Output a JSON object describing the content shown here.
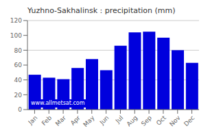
{
  "chart_data": {
    "type": "bar",
    "title": "Yuzhno-Sakhalinsk : precipitation (mm)",
    "categories": [
      "Jan",
      "Feb",
      "Mar",
      "Apr",
      "May",
      "Jun",
      "Jul",
      "Aug",
      "Sep",
      "Oct",
      "Nov",
      "Dec"
    ],
    "values": [
      47,
      43,
      41,
      56,
      68,
      53,
      86,
      104,
      105,
      97,
      80,
      63
    ],
    "color": "#0000dd",
    "ylim": [
      0,
      120
    ],
    "yticks": [
      0,
      20,
      40,
      60,
      80,
      100,
      120
    ],
    "grid": true,
    "annotations": [
      {
        "text": "www.allmetsat.com"
      }
    ]
  }
}
